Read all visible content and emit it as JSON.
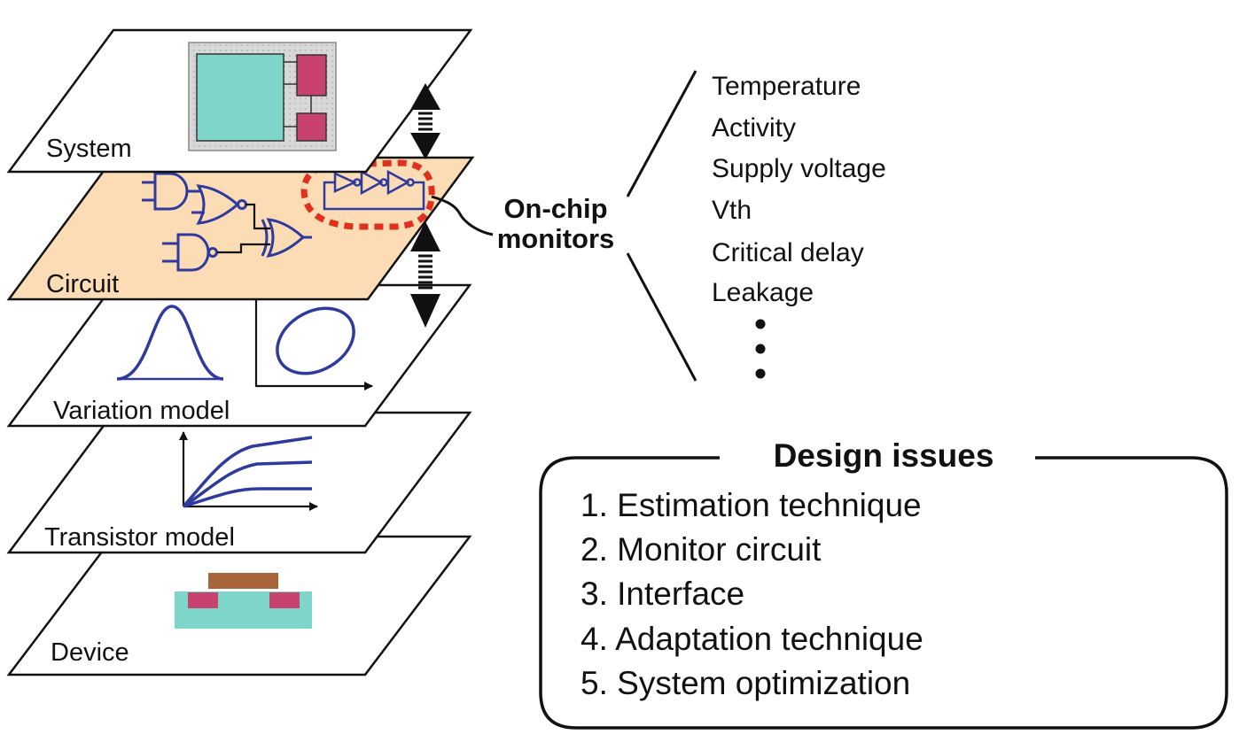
{
  "layers": {
    "system": "System",
    "circuit": "Circuit",
    "variation": "Variation model",
    "transistor": "Transistor model",
    "device": "Device"
  },
  "monitors": {
    "line1": "On-chip",
    "line2": "monitors"
  },
  "parameters": [
    "Temperature",
    "Activity",
    "Supply voltage",
    "Vth",
    "Critical delay",
    "Leakage"
  ],
  "design_issues": {
    "title": "Design issues",
    "items": [
      "1. Estimation technique",
      "2. Monitor circuit",
      "3. Interface",
      "4. Adaptation technique",
      "5. System optimization"
    ]
  },
  "colors": {
    "circuit_plane": "#FBDCB5",
    "chip_block": "#7ED6CB",
    "chip_pad": "#C8426E",
    "chip_bg": "#DCDCDC",
    "gate_blue": "#2E3A9E",
    "monitor_highlight": "#E0301E",
    "gate_brown": "#A8643A"
  }
}
